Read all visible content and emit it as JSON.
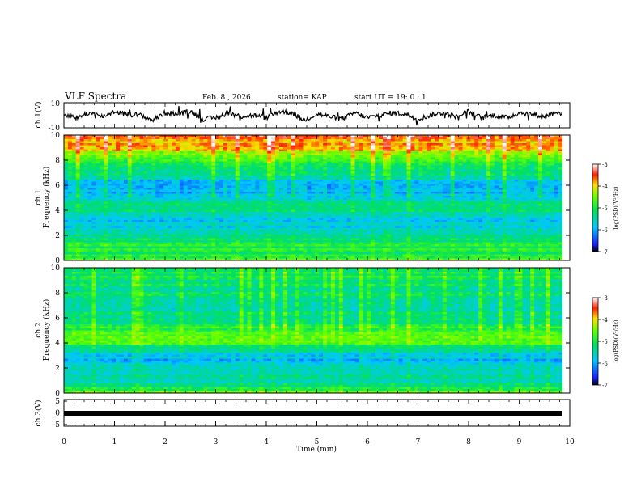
{
  "header": {
    "title": "VLF Spectra",
    "date": "Feb. 8 , 2026",
    "station": "station= KAP",
    "start": "start  UT =   19: 0  : 1"
  },
  "colors": {
    "axis": "#000000",
    "trace": "#000000",
    "background": "#ffffff"
  },
  "chart_data": [
    {
      "type": "line",
      "panel": "ch1-timeseries",
      "ylabel": "ch.1(V)",
      "ylim": [
        -10,
        10
      ],
      "yticks": [
        -10,
        10
      ],
      "x_range_min": [
        0,
        9.85
      ],
      "series": [
        {
          "name": "ch.1",
          "x_min": [
            0,
            0.25,
            0.5,
            0.75,
            1,
            1.25,
            1.5,
            1.75,
            2,
            2.25,
            2.5,
            2.75,
            3,
            3.25,
            3.5,
            3.75,
            4,
            4.25,
            4.5,
            4.75,
            5,
            5.25,
            5.5,
            5.75,
            6,
            6.25,
            6.5,
            6.75,
            7,
            7.25,
            7.5,
            7.75,
            8,
            8.25,
            8.5,
            8.75,
            9,
            9.25,
            9.5,
            9.75,
            9.85
          ],
          "values": [
            1,
            -2,
            2,
            -1,
            3,
            1,
            0,
            -4,
            2,
            1,
            3,
            -3,
            -2,
            2,
            -1,
            0,
            -2,
            3,
            2,
            -4,
            1,
            -1,
            -3,
            2,
            -2,
            0,
            2,
            1,
            -3,
            0,
            2,
            -1,
            3,
            -2,
            0,
            -2,
            2,
            1,
            -1,
            3,
            1
          ]
        }
      ]
    },
    {
      "type": "heatmap",
      "panel": "ch1-spectrogram",
      "xlabel": "",
      "ylabel": "Frequency (kHz)",
      "channel_label": "ch.1",
      "ylim": [
        0,
        10
      ],
      "yticks": [
        0,
        2,
        4,
        6,
        8,
        10
      ],
      "xlim": [
        0,
        10
      ],
      "colorbar": {
        "label": "log(PSD)(V²/Hz)",
        "range": [
          -7,
          -3
        ],
        "ticks": [
          -3,
          -4,
          -5,
          -6,
          -7
        ]
      },
      "profile": {
        "freq_khz": [
          0,
          0.5,
          1,
          1.5,
          2,
          2.5,
          3,
          3.5,
          4,
          4.5,
          5,
          5.5,
          6,
          6.5,
          7,
          7.5,
          8,
          8.5,
          9,
          9.5,
          10
        ],
        "log_psd": [
          -4.5,
          -5.0,
          -5.0,
          -5.2,
          -5.4,
          -5.6,
          -5.9,
          -5.5,
          -5.2,
          -5.3,
          -5.6,
          -6.0,
          -5.9,
          -5.7,
          -5.3,
          -5.0,
          -4.6,
          -4.3,
          -4.0,
          -3.8,
          -3.6
        ]
      }
    },
    {
      "type": "heatmap",
      "panel": "ch2-spectrogram",
      "xlabel": "",
      "ylabel": "Frequency (kHz)",
      "channel_label": "ch.2",
      "ylim": [
        0,
        10
      ],
      "yticks": [
        0,
        2,
        4,
        6,
        8,
        10
      ],
      "xlim": [
        0,
        10
      ],
      "colorbar": {
        "label": "log(PSD)(V²/Hz)",
        "range": [
          -7,
          -3
        ],
        "ticks": [
          -3,
          -4,
          -5,
          -6,
          -7
        ]
      },
      "profile": {
        "freq_khz": [
          0,
          0.5,
          1,
          1.5,
          2,
          2.5,
          3,
          3.5,
          4,
          4.5,
          5,
          5.5,
          6,
          6.5,
          7,
          7.5,
          8,
          8.5,
          9,
          9.5,
          10
        ],
        "log_psd": [
          -4.6,
          -5.2,
          -5.5,
          -5.6,
          -5.7,
          -5.8,
          -5.9,
          -5.4,
          -4.8,
          -4.6,
          -4.8,
          -5.2,
          -5.3,
          -5.4,
          -5.5,
          -5.4,
          -5.3,
          -5.2,
          -5.1,
          -5.2,
          -5.3
        ]
      }
    },
    {
      "type": "line",
      "panel": "ch3-timeseries",
      "ylabel": "ch.3(V)",
      "xlabel": "Time  (min)",
      "ylim": [
        -5,
        5
      ],
      "yticks": [
        -5,
        0,
        5
      ],
      "xlim": [
        0,
        10
      ],
      "xticks": [
        0,
        1,
        2,
        3,
        4,
        5,
        6,
        7,
        8,
        9,
        10
      ],
      "series": [
        {
          "name": "ch.3",
          "x_min": [
            0,
            9.85
          ],
          "values": [
            0,
            0
          ]
        }
      ]
    }
  ]
}
